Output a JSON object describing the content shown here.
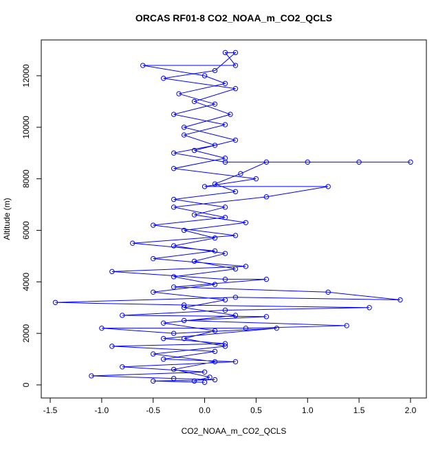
{
  "chart_data": {
    "type": "line",
    "title": "ORCAS RF01-8 CO2_NOAA_m_CO2_QCLS",
    "x_label": "CO2_NOAA_m_CO2_QCLS",
    "y_label": "Altitude (m)",
    "xlim": [
      -1.587,
      2.154
    ],
    "ylim": [
      -508,
      13390
    ],
    "xticks": [
      -1.5,
      {
        "value": -1,
        "label": "-1.0"
      },
      -0.5,
      {
        "value": 0,
        "label": "0.0"
      },
      0.5,
      {
        "value": 1,
        "label": "1.0"
      },
      1.5,
      {
        "value": 2,
        "label": "2.0"
      }
    ],
    "yticks": [
      0,
      2000,
      4000,
      6000,
      8000,
      10000,
      12000
    ],
    "series": [
      {
        "color": "#0000ff",
        "x": [
          -0.1,
          0.05,
          -0.3,
          0.1,
          -0.5,
          0.2,
          -0.2,
          0.1,
          -0.4,
          0.3,
          -0.2,
          0.2,
          -0.5,
          0.1,
          -0.3,
          0.3,
          -0.1,
          0.2,
          -0.3,
          0.1,
          -0.2,
          0.4,
          -0.1,
          0.2,
          -0.3,
          0.3,
          0.1,
          0.35,
          0.6,
          1.0,
          1.5,
          2.0,
          0.2,
          -0.3,
          0.1,
          -0.2,
          0.2,
          -0.3,
          0.1,
          -0.25,
          0.2,
          0.0,
          -0.6,
          0.3,
          0.2,
          0.3,
          0.1,
          -0.4,
          0.3,
          -0.1,
          0.25,
          -0.2,
          0.3,
          -0.1,
          0.2,
          -0.3,
          0.5,
          0.0,
          1.2,
          0.6,
          -0.3,
          0.2,
          -0.5,
          0.3,
          -0.7,
          0.1,
          -0.5,
          0.4,
          -0.9,
          0.2,
          0.6,
          -0.3,
          1.2,
          1.9,
          0.3,
          -1.45,
          -0.2,
          1.6,
          0.2,
          -0.8,
          0.6,
          -0.2,
          1.38,
          0.4,
          -1.0,
          -0.3,
          0.7,
          -0.4,
          0.2,
          -0.9,
          0.1,
          -0.4,
          0.3,
          -0.8,
          0.0,
          -1.1,
          -0.3,
          0.1,
          -0.5,
          0.0
        ],
        "values": [
          150,
          300,
          600,
          900,
          1200,
          1500,
          1800,
          2100,
          2400,
          2700,
          3000,
          3300,
          3600,
          3900,
          4200,
          4500,
          4800,
          5100,
          5400,
          5700,
          6000,
          6300,
          6600,
          6900,
          7200,
          7500,
          7800,
          8200,
          8650,
          8650,
          8650,
          8650,
          8650,
          9000,
          9300,
          9700,
          10100,
          10500,
          10900,
          11300,
          11700,
          12000,
          12400,
          12400,
          12900,
          12900,
          12200,
          11900,
          11500,
          11000,
          10500,
          10000,
          9500,
          9100,
          8800,
          8400,
          8000,
          7700,
          7700,
          7300,
          6900,
          6500,
          6200,
          5800,
          5500,
          5200,
          4900,
          4600,
          4400,
          4100,
          4100,
          3800,
          3600,
          3300,
          3400,
          3200,
          3100,
          3000,
          2900,
          2700,
          2650,
          2500,
          2300,
          2200,
          2200,
          2000,
          2200,
          1800,
          1600,
          1500,
          1300,
          1000,
          900,
          700,
          500,
          350,
          250,
          200,
          150,
          100
        ]
      }
    ]
  }
}
